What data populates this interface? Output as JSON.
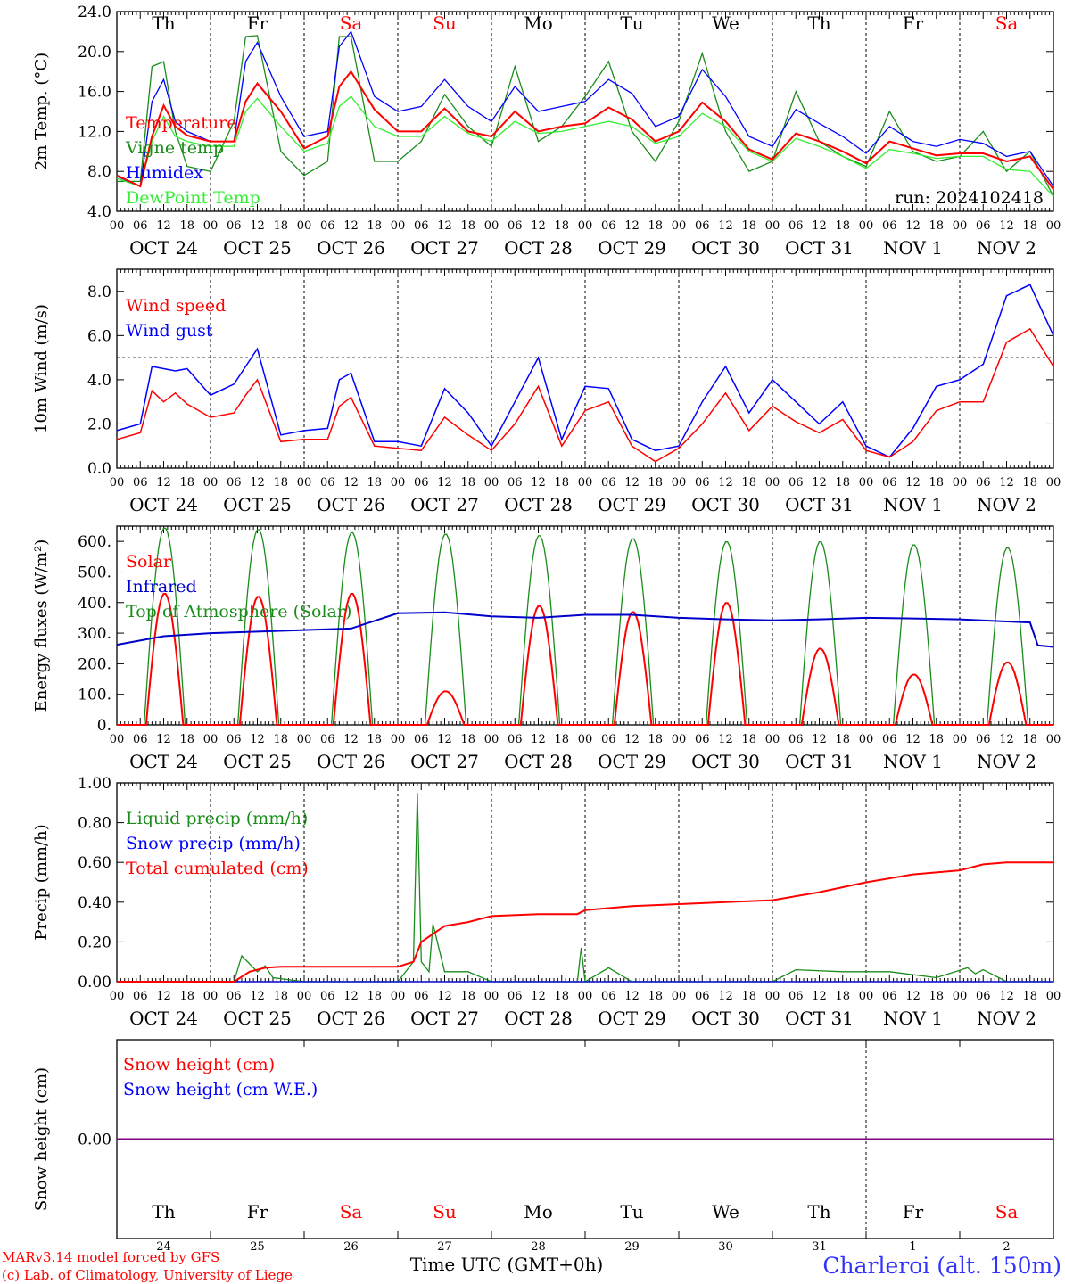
{
  "colors": {
    "red": "#ff0000",
    "green": "#1a8c1a",
    "blue": "#0000ff",
    "lightgreen": "#33ee33",
    "darkblue": "#0000cc",
    "axis": "#000000",
    "purple": "#800080",
    "title_blue": "#3333ff"
  },
  "days": [
    {
      "name": "Th",
      "date": "OCT 24",
      "num": "24",
      "weekend": false
    },
    {
      "name": "Fr",
      "date": "OCT 25",
      "num": "25",
      "weekend": false
    },
    {
      "name": "Sa",
      "date": "OCT 26",
      "num": "26",
      "weekend": true
    },
    {
      "name": "Su",
      "date": "OCT 27",
      "num": "27",
      "weekend": true
    },
    {
      "name": "Mo",
      "date": "OCT 28",
      "num": "28",
      "weekend": false
    },
    {
      "name": "Tu",
      "date": "OCT 29",
      "num": "29",
      "weekend": false
    },
    {
      "name": "We",
      "date": "OCT 30",
      "num": "30",
      "weekend": false
    },
    {
      "name": "Th",
      "date": "OCT 31",
      "num": "31",
      "weekend": false
    },
    {
      "name": "Fr",
      "date": "NOV  1",
      "num": "1",
      "weekend": false
    },
    {
      "name": "Sa",
      "date": "NOV  2",
      "num": "2",
      "weekend": true
    }
  ],
  "hour_labels": [
    "00",
    "06",
    "12",
    "18"
  ],
  "final_hour_label": "00",
  "run_label": "run: 2024102418",
  "xlabel": "Time UTC (GMT+0h)",
  "footer": {
    "model": "MARv3.14 model forced by GFS",
    "lab": "(c) Lab. of Climatology, University of Liege",
    "station": "Charleroi (alt. 150m)"
  },
  "chart_data": [
    {
      "type": "line",
      "ylabel": "2m Temp. (°C)",
      "ylim": [
        4,
        24
      ],
      "yticks": [
        "4.0",
        "8.0",
        "12.0",
        "16.0",
        "20.0",
        "24.0"
      ],
      "x_hours": [
        0,
        6,
        9,
        12,
        15,
        18,
        24,
        30,
        33,
        36,
        42,
        48,
        54,
        57,
        60,
        66,
        72,
        78,
        84,
        90,
        96,
        102,
        108,
        114,
        120,
        126,
        132,
        138,
        144,
        150,
        156,
        162,
        168,
        174,
        180,
        186,
        192,
        198,
        204,
        210,
        216,
        222,
        228,
        234,
        240
      ],
      "series": [
        {
          "name": "Temperature",
          "color": "red",
          "values": [
            7.6,
            6.5,
            11.5,
            14.6,
            12.5,
            11.6,
            11.0,
            11.0,
            15.0,
            16.8,
            14.0,
            10.3,
            11.5,
            16.5,
            18.0,
            14.2,
            12.0,
            12.0,
            14.3,
            12.0,
            11.5,
            14.0,
            12.0,
            12.5,
            12.8,
            14.4,
            13.2,
            11.0,
            12.0,
            14.9,
            13.0,
            10.2,
            9.2,
            11.8,
            11.0,
            10.0,
            8.8,
            11.0,
            10.3,
            9.6,
            9.8,
            9.8,
            9.0,
            9.5,
            6.2
          ]
        },
        {
          "name": "Vigne temp",
          "color": "green",
          "values": [
            7.0,
            7.0,
            18.5,
            19.0,
            12.0,
            8.5,
            8.0,
            13.0,
            21.5,
            21.6,
            10.0,
            7.6,
            9.0,
            21.5,
            21.5,
            9.0,
            9.0,
            11.0,
            15.7,
            12.5,
            10.5,
            18.5,
            11.0,
            12.5,
            15.5,
            19.0,
            12.0,
            9.0,
            13.0,
            19.8,
            12.0,
            8.0,
            9.0,
            16.0,
            11.0,
            9.5,
            8.5,
            14.0,
            10.0,
            9.0,
            9.5,
            12.0,
            8.0,
            10.0,
            5.5
          ]
        },
        {
          "name": "Humidex",
          "color": "blue",
          "values": [
            7.5,
            6.5,
            15.0,
            17.2,
            13.0,
            12.0,
            11.0,
            11.0,
            19.0,
            20.9,
            15.5,
            11.5,
            12.0,
            20.5,
            22.0,
            15.5,
            14.0,
            14.5,
            17.2,
            14.5,
            13.0,
            16.5,
            14.0,
            14.5,
            15.0,
            17.2,
            15.8,
            12.5,
            13.5,
            18.2,
            15.5,
            11.5,
            10.5,
            14.2,
            12.8,
            11.5,
            9.8,
            12.5,
            11.0,
            10.5,
            11.2,
            10.8,
            9.5,
            10.0,
            6.5
          ]
        },
        {
          "name": "DewPoint Temp",
          "color": "lightgreen",
          "values": [
            7.3,
            6.5,
            11.0,
            13.5,
            11.5,
            11.0,
            10.5,
            10.5,
            14.0,
            15.3,
            12.5,
            10.0,
            10.8,
            14.5,
            15.5,
            12.5,
            11.5,
            11.5,
            13.5,
            11.8,
            11.0,
            13.0,
            11.8,
            12.0,
            12.5,
            13.0,
            12.5,
            10.8,
            11.5,
            13.8,
            12.5,
            10.0,
            9.0,
            11.3,
            10.5,
            9.5,
            8.3,
            10.2,
            9.8,
            9.3,
            9.5,
            9.5,
            8.2,
            8.0,
            5.5
          ]
        }
      ]
    },
    {
      "type": "line",
      "ylabel": "10m Wind (m/s)",
      "ylim": [
        0,
        9
      ],
      "yticks": [
        "0.0",
        "2.0",
        "4.0",
        "6.0",
        "8.0"
      ],
      "reference_line": 5,
      "x_hours": [
        0,
        6,
        9,
        12,
        15,
        18,
        24,
        30,
        33,
        36,
        42,
        48,
        54,
        57,
        60,
        66,
        72,
        78,
        84,
        90,
        96,
        102,
        108,
        114,
        120,
        126,
        132,
        138,
        144,
        150,
        156,
        162,
        168,
        174,
        180,
        186,
        192,
        198,
        204,
        210,
        216,
        222,
        228,
        234,
        240
      ],
      "series": [
        {
          "name": "Wind speed",
          "color": "red",
          "values": [
            1.3,
            1.6,
            3.5,
            3.0,
            3.4,
            2.9,
            2.3,
            2.5,
            3.3,
            4.0,
            1.2,
            1.3,
            1.3,
            2.8,
            3.2,
            1.0,
            0.9,
            0.8,
            2.3,
            1.5,
            0.8,
            2.0,
            3.7,
            1.0,
            2.6,
            3.0,
            1.0,
            0.3,
            0.9,
            2.0,
            3.4,
            1.7,
            2.8,
            2.1,
            1.6,
            2.2,
            0.8,
            0.5,
            1.2,
            2.6,
            3.0,
            3.0,
            5.7,
            6.3,
            4.6
          ]
        },
        {
          "name": "Wind gust",
          "color": "blue",
          "values": [
            1.7,
            2.0,
            4.6,
            4.5,
            4.4,
            4.5,
            3.3,
            3.8,
            4.6,
            5.4,
            1.5,
            1.7,
            1.8,
            4.0,
            4.3,
            1.2,
            1.2,
            1.0,
            3.6,
            2.5,
            1.0,
            3.0,
            5.0,
            1.3,
            3.7,
            3.6,
            1.3,
            0.8,
            1.0,
            3.0,
            4.6,
            2.5,
            4.0,
            3.0,
            2.0,
            3.0,
            1.0,
            0.5,
            1.8,
            3.7,
            4.0,
            4.7,
            7.8,
            8.3,
            6.0
          ]
        }
      ]
    },
    {
      "type": "line",
      "ylabel": "Energy fluxes (W/m²)",
      "ylim": [
        0,
        650
      ],
      "yticks": [
        "0.",
        "100.",
        "200.",
        "300.",
        "400.",
        "500.",
        "600."
      ],
      "x_hours": [],
      "series": [
        {
          "name": "Solar",
          "color": "red",
          "day_peaks": [
            430,
            420,
            430,
            110,
            390,
            370,
            400,
            250,
            165,
            205
          ]
        },
        {
          "name": "Infrared",
          "color": "darkblue",
          "points": [
            [
              0,
              262
            ],
            [
              12,
              290
            ],
            [
              24,
              300
            ],
            [
              36,
              305
            ],
            [
              48,
              310
            ],
            [
              60,
              315
            ],
            [
              72,
              365
            ],
            [
              84,
              368
            ],
            [
              96,
              355
            ],
            [
              108,
              350
            ],
            [
              120,
              360
            ],
            [
              132,
              360
            ],
            [
              144,
              350
            ],
            [
              156,
              345
            ],
            [
              168,
              342
            ],
            [
              180,
              345
            ],
            [
              192,
              350
            ],
            [
              204,
              348
            ],
            [
              216,
              345
            ],
            [
              228,
              338
            ],
            [
              234,
              335
            ],
            [
              236,
              260
            ],
            [
              240,
              255
            ]
          ]
        },
        {
          "name": "Top of Atmosphere (Solar)",
          "color": "green",
          "day_peaks": [
            645,
            640,
            630,
            625,
            620,
            610,
            600,
            600,
            590,
            580
          ]
        }
      ]
    },
    {
      "type": "line",
      "ylabel": "Precip (mm/h)",
      "ylim": [
        0,
        1
      ],
      "yticks": [
        "0.00",
        "0.20",
        "0.40",
        "0.60",
        "0.80",
        "1.00"
      ],
      "series": [
        {
          "name": "Liquid precip (mm/h)",
          "color": "green",
          "points": [
            [
              0,
              0
            ],
            [
              30,
              0
            ],
            [
              32,
              0.13
            ],
            [
              36,
              0.05
            ],
            [
              38,
              0.08
            ],
            [
              40,
              0.02
            ],
            [
              48,
              0
            ],
            [
              72,
              0
            ],
            [
              76,
              0.1
            ],
            [
              77,
              0.95
            ],
            [
              78,
              0.1
            ],
            [
              80,
              0.05
            ],
            [
              81,
              0.29
            ],
            [
              84,
              0.05
            ],
            [
              90,
              0.05
            ],
            [
              96,
              0
            ],
            [
              118,
              0
            ],
            [
              119,
              0.17
            ],
            [
              120,
              0
            ],
            [
              126,
              0.07
            ],
            [
              132,
              0
            ],
            [
              168,
              0
            ],
            [
              174,
              0.06
            ],
            [
              186,
              0.05
            ],
            [
              198,
              0.05
            ],
            [
              210,
              0.02
            ],
            [
              218,
              0.07
            ],
            [
              220,
              0.04
            ],
            [
              222,
              0.06
            ],
            [
              228,
              0
            ],
            [
              240,
              0
            ]
          ]
        },
        {
          "name": "Snow precip (mm/h)",
          "color": "blue",
          "points": [
            [
              0,
              0
            ],
            [
              240,
              0
            ]
          ]
        },
        {
          "name": "Total cumulated (cm)",
          "color": "red",
          "points": [
            [
              0,
              0
            ],
            [
              30,
              0
            ],
            [
              34,
              0.05
            ],
            [
              38,
              0.07
            ],
            [
              42,
              0.075
            ],
            [
              48,
              0.075
            ],
            [
              72,
              0.075
            ],
            [
              76,
              0.1
            ],
            [
              78,
              0.2
            ],
            [
              84,
              0.28
            ],
            [
              90,
              0.3
            ],
            [
              96,
              0.33
            ],
            [
              108,
              0.34
            ],
            [
              118,
              0.34
            ],
            [
              120,
              0.36
            ],
            [
              132,
              0.38
            ],
            [
              144,
              0.39
            ],
            [
              156,
              0.4
            ],
            [
              168,
              0.41
            ],
            [
              180,
              0.45
            ],
            [
              192,
              0.5
            ],
            [
              204,
              0.54
            ],
            [
              216,
              0.56
            ],
            [
              222,
              0.59
            ],
            [
              228,
              0.6
            ],
            [
              240,
              0.6
            ]
          ]
        }
      ]
    },
    {
      "type": "line",
      "ylabel": "Snow height (cm)",
      "ylim": [
        -1,
        1
      ],
      "yticks": [
        "0.00"
      ],
      "series": [
        {
          "name": "Snow height (cm)",
          "color": "red",
          "points": [
            [
              0,
              0
            ],
            [
              240,
              0
            ]
          ]
        },
        {
          "name": "Snow height (cm W.E.)",
          "color": "blue",
          "points": [
            [
              0,
              0
            ],
            [
              240,
              0
            ]
          ]
        }
      ]
    }
  ]
}
